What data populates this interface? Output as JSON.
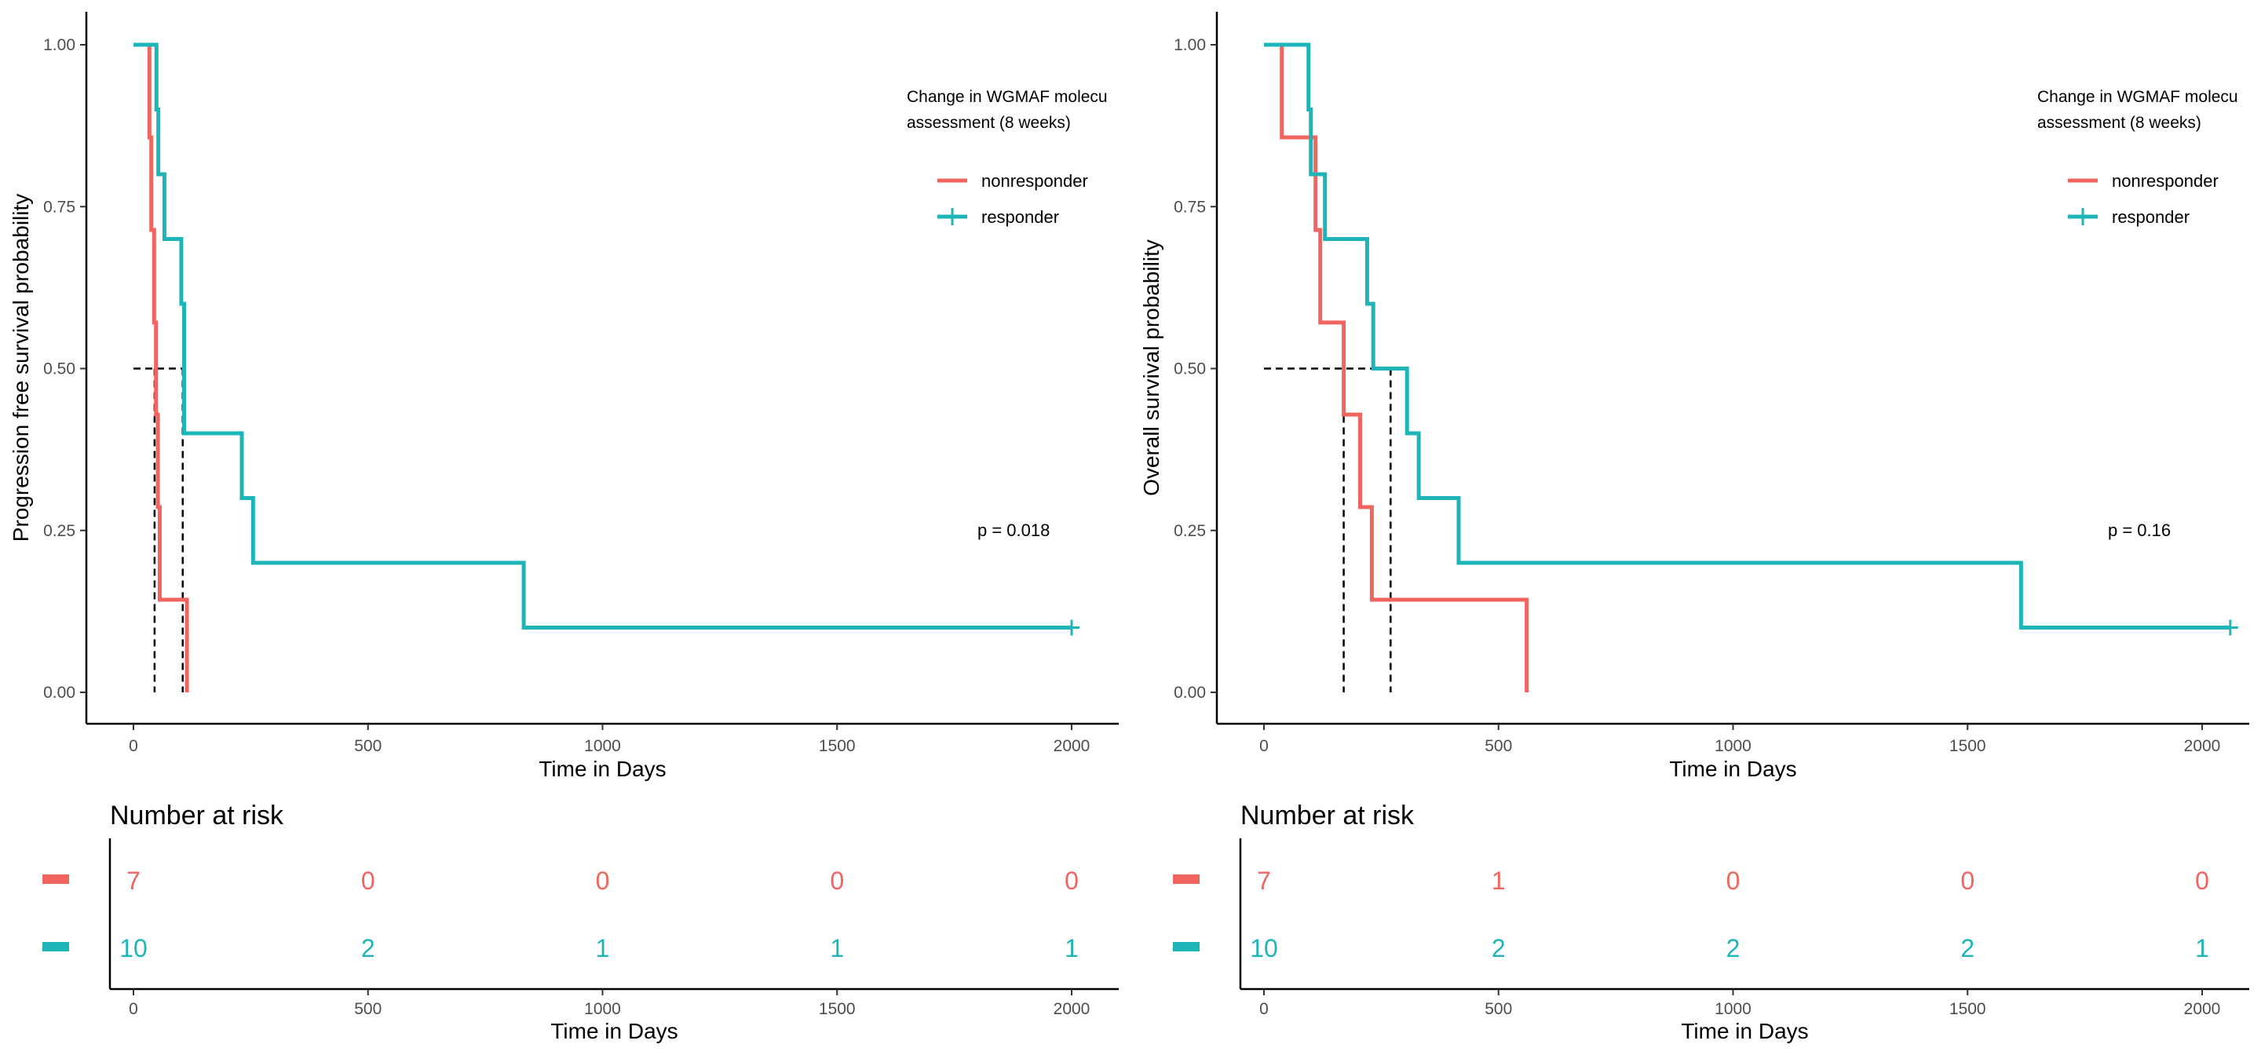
{
  "colors": {
    "nonresponder": "#F2645F",
    "responder": "#1EB5B8"
  },
  "chart_data": [
    {
      "type": "line",
      "title": "",
      "xlabel": "Time in Days",
      "ylabel": "Progression free survival probability",
      "xlim": [
        0,
        2000
      ],
      "ylim": [
        0,
        1
      ],
      "xticks": [
        "0",
        "500",
        "1000",
        "1500",
        "2000"
      ],
      "yticks": [
        "0.00",
        "0.25",
        "0.50",
        "0.75",
        "1.00"
      ],
      "grid": false,
      "legend": {
        "title": [
          "Change in WGMAF molecu",
          "assessment (8 weeks)"
        ],
        "position": "top-right",
        "entries": [
          "nonresponder",
          "responder"
        ]
      },
      "pvalue": "p = 0.018",
      "series": [
        {
          "name": "nonresponder",
          "x": [
            0,
            34,
            38,
            44,
            48,
            52,
            56,
            60,
            114,
            114
          ],
          "y": [
            1,
            0.857,
            0.714,
            0.571,
            0.429,
            0.286,
            0.143,
            0.143,
            0.143,
            0
          ]
        },
        {
          "name": "responder",
          "x": [
            0,
            49,
            53,
            66,
            70,
            102,
            108,
            231,
            255,
            832,
            2000
          ],
          "y": [
            1,
            0.9,
            0.8,
            0.7,
            0.7,
            0.6,
            0.4,
            0.3,
            0.2,
            0.1,
            0.1
          ],
          "censor": [
            [
              2000,
              0.1
            ]
          ]
        }
      ],
      "medians": [
        45,
        105
      ],
      "risk_table": {
        "title": "Number at risk",
        "xlabel": "Time in Days",
        "xticks": [
          "0",
          "500",
          "1000",
          "1500",
          "2000"
        ],
        "nonresponder": [
          "7",
          "0",
          "0",
          "0",
          "0"
        ],
        "responder": [
          "10",
          "2",
          "1",
          "1",
          "1"
        ]
      }
    },
    {
      "type": "line",
      "title": "",
      "xlabel": "Time in Days",
      "ylabel": "Overall survival probability",
      "xlim": [
        0,
        2000
      ],
      "ylim": [
        0,
        1
      ],
      "xticks": [
        "0",
        "500",
        "1000",
        "1500",
        "2000"
      ],
      "yticks": [
        "0.00",
        "0.25",
        "0.50",
        "0.75",
        "1.00"
      ],
      "grid": false,
      "legend": {
        "title": [
          "Change in WGMAF molecu",
          "assessment (8 weeks)"
        ],
        "position": "top-right",
        "entries": [
          "nonresponder",
          "responder"
        ]
      },
      "pvalue": "p = 0.16",
      "series": [
        {
          "name": "nonresponder",
          "x": [
            0,
            38,
            110,
            120,
            170,
            205,
            230,
            560,
            560
          ],
          "y": [
            1,
            0.857,
            0.714,
            0.571,
            0.429,
            0.286,
            0.143,
            0.143,
            0
          ]
        },
        {
          "name": "responder",
          "x": [
            0,
            95,
            100,
            130,
            220,
            233,
            305,
            330,
            415,
            1614,
            2060
          ],
          "y": [
            1,
            0.9,
            0.8,
            0.7,
            0.6,
            0.5,
            0.4,
            0.3,
            0.2,
            0.1,
            0.1
          ],
          "censor": [
            [
              2060,
              0.1
            ]
          ]
        }
      ],
      "medians": [
        170,
        270
      ],
      "risk_table": {
        "title": "Number at risk",
        "xlabel": "Time in Days",
        "xticks": [
          "0",
          "500",
          "1000",
          "1500",
          "2000"
        ],
        "nonresponder": [
          "7",
          "1",
          "0",
          "0",
          "0"
        ],
        "responder": [
          "10",
          "2",
          "2",
          "2",
          "1"
        ]
      }
    }
  ]
}
